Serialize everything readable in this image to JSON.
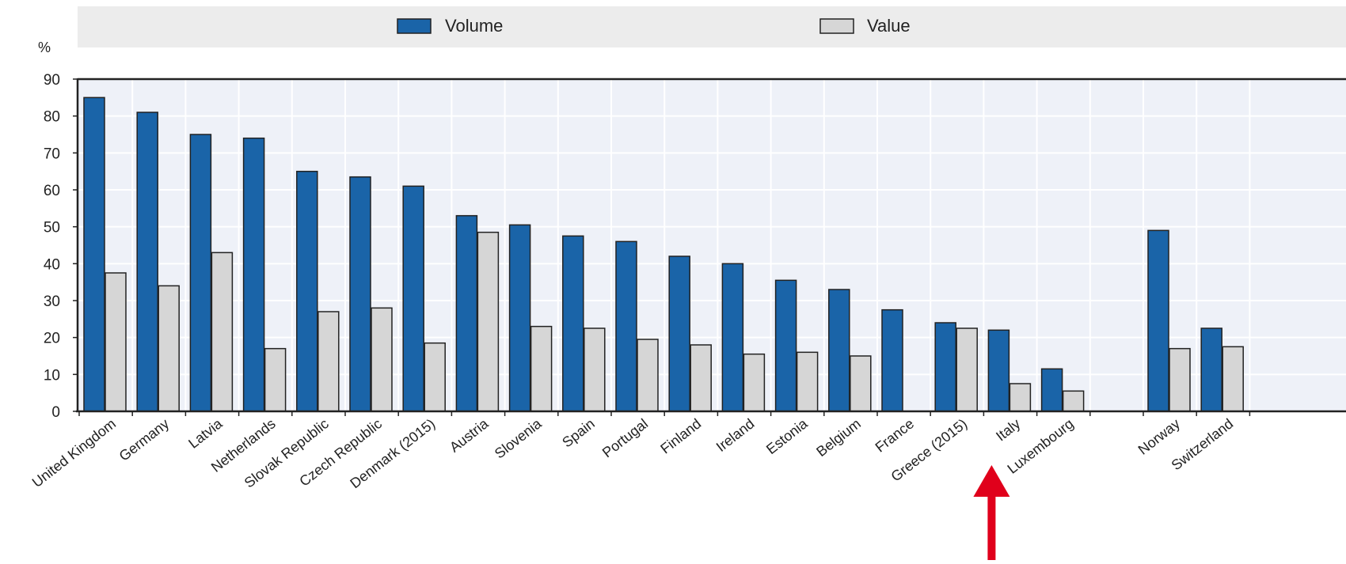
{
  "legend": {
    "volume_label": "Volume",
    "value_label": "Value"
  },
  "colors": {
    "volume": "#1a64a8",
    "value": "#d6d6d6",
    "bar_stroke": "#222222",
    "plot_bg": "#eef1f8",
    "legend_bg": "#ececec",
    "annotation_arrow": "#e0001b"
  },
  "chart_data": {
    "type": "bar",
    "title": "",
    "xlabel": "",
    "ylabel": "%",
    "ylim": [
      0,
      90
    ],
    "yticks": [
      0,
      10,
      20,
      30,
      40,
      50,
      60,
      70,
      80,
      90
    ],
    "grid": true,
    "legend_position": "top",
    "categories": [
      "United Kingdom",
      "Germany",
      "Latvia",
      "Netherlands",
      "Slovak Republic",
      "Czech Republic",
      "Denmark (2015)",
      "Austria",
      "Slovenia",
      "Spain",
      "Portugal",
      "Finland",
      "Ireland",
      "Estonia",
      "Belgium",
      "France",
      "Greece (2015)",
      "Italy",
      "Luxembourg",
      "",
      "Norway",
      "Switzerland"
    ],
    "series": [
      {
        "name": "Volume",
        "values": [
          85,
          81,
          75,
          74,
          65,
          63.5,
          61,
          53,
          50.5,
          47.5,
          46,
          42,
          40,
          35.5,
          33,
          27.5,
          24,
          22,
          11.5,
          null,
          49,
          22.5
        ]
      },
      {
        "name": "Value",
        "values": [
          37.5,
          34,
          43,
          17,
          27,
          28,
          18.5,
          48.5,
          23,
          22.5,
          19.5,
          18,
          15.5,
          16,
          15,
          null,
          22.5,
          7.5,
          5.5,
          null,
          17,
          17.5
        ]
      }
    ],
    "annotations": [
      {
        "type": "arrow",
        "target_category": "Italy",
        "direction": "up"
      }
    ]
  }
}
